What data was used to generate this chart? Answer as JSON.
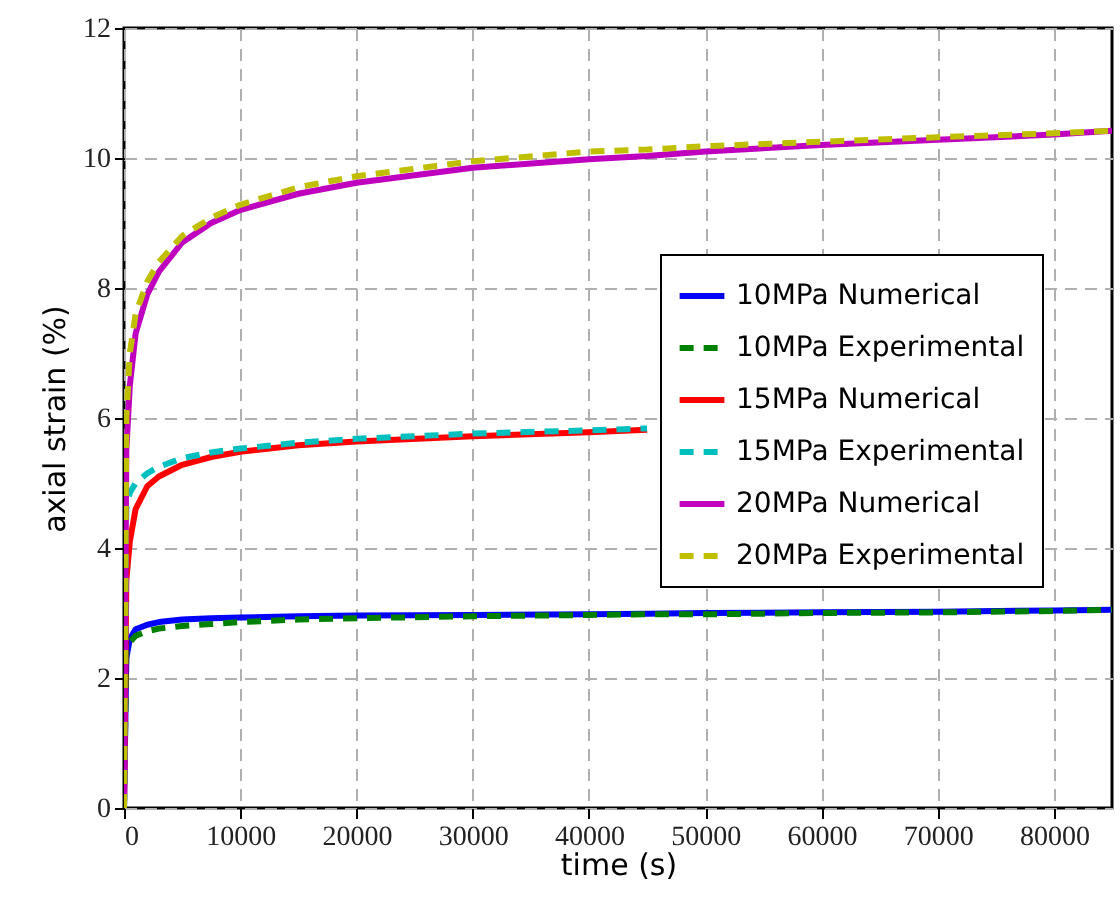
{
  "chart_data": {
    "type": "line",
    "xlabel": "time (s)",
    "ylabel": "axial strain (%)",
    "xlim": [
      0,
      85000
    ],
    "ylim": [
      0,
      12
    ],
    "xticks": [
      0,
      10000,
      20000,
      30000,
      40000,
      50000,
      60000,
      70000,
      80000
    ],
    "yticks": [
      0,
      2,
      4,
      6,
      8,
      10,
      12
    ],
    "grid": true,
    "legend": "right",
    "marker": "none",
    "x": [
      0,
      200,
      500,
      1000,
      2000,
      3000,
      5000,
      7500,
      10000,
      15000,
      20000,
      30000,
      40000,
      45000,
      50000,
      60000,
      70000,
      80000,
      85000
    ],
    "series": [
      {
        "name": "10MPa Numerical",
        "color": "#0000ff",
        "line_style": "solid",
        "values": [
          0,
          2.3,
          2.6,
          2.75,
          2.82,
          2.86,
          2.9,
          2.92,
          2.93,
          2.95,
          2.96,
          2.97,
          2.98,
          2.99,
          3.0,
          3.01,
          3.02,
          3.04,
          3.05
        ]
      },
      {
        "name": "10MPa Experimental",
        "color": "#008000",
        "line_style": "dashed",
        "values": [
          0,
          2.4,
          2.55,
          2.65,
          2.72,
          2.76,
          2.8,
          2.83,
          2.86,
          2.9,
          2.92,
          2.95,
          2.97,
          2.98,
          2.98,
          3.0,
          3.01,
          3.03,
          3.05
        ]
      },
      {
        "name": "15MPa Numerical",
        "color": "#ff0000",
        "line_style": "solid",
        "values": [
          0,
          3.5,
          4.1,
          4.6,
          4.95,
          5.1,
          5.28,
          5.4,
          5.48,
          5.58,
          5.64,
          5.72,
          5.78,
          5.82,
          null,
          null,
          null,
          null,
          null
        ]
      },
      {
        "name": "15MPa Experimental",
        "color": "#00bfbf",
        "line_style": "dashed",
        "values": [
          0,
          4.6,
          4.85,
          5.0,
          5.15,
          5.25,
          5.38,
          5.47,
          5.53,
          5.62,
          5.68,
          5.76,
          5.81,
          5.84,
          null,
          null,
          null,
          null,
          null
        ]
      },
      {
        "name": "20MPa Numerical",
        "color": "#bf00bf",
        "line_style": "solid",
        "values": [
          0,
          5.5,
          6.5,
          7.3,
          7.9,
          8.25,
          8.7,
          9.0,
          9.2,
          9.45,
          9.62,
          9.85,
          9.98,
          10.03,
          10.1,
          10.2,
          10.28,
          10.36,
          10.42
        ]
      },
      {
        "name": "20MPa Experimental",
        "color": "#bfbf00",
        "line_style": "dashed",
        "values": [
          0,
          6.0,
          7.0,
          7.6,
          8.1,
          8.4,
          8.8,
          9.08,
          9.28,
          9.55,
          9.72,
          9.95,
          10.1,
          10.13,
          10.18,
          10.25,
          10.32,
          10.38,
          10.42
        ]
      }
    ]
  }
}
